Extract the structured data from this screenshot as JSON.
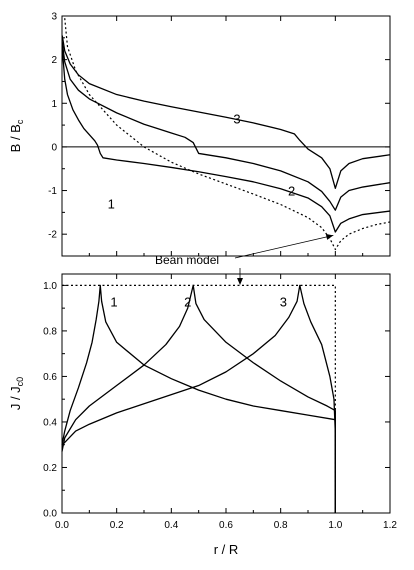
{
  "chart_data": [
    {
      "type": "line",
      "title": "",
      "xlabel": "",
      "ylabel": "B / B",
      "ylabel_sub": "c",
      "xlim": [
        0,
        1.2
      ],
      "ylim": [
        -2.5,
        3
      ],
      "yticks": [
        -2,
        -1,
        0,
        1,
        2,
        3
      ],
      "yticklabels": [
        "-2",
        "-1",
        "0",
        "1",
        "2",
        "3"
      ],
      "zero_line": true,
      "annotation": {
        "text": "Bean model",
        "arrow_target": [
          1.0,
          -2.05
        ]
      },
      "series": [
        {
          "label": "1",
          "label_at": [
            0.18,
            -1.3
          ],
          "style": "solid",
          "points": [
            [
              0.001,
              2.25
            ],
            [
              0.01,
              1.55
            ],
            [
              0.02,
              1.2
            ],
            [
              0.04,
              0.85
            ],
            [
              0.06,
              0.62
            ],
            [
              0.08,
              0.42
            ],
            [
              0.1,
              0.28
            ],
            [
              0.12,
              0.14
            ],
            [
              0.13,
              0.04
            ],
            [
              0.14,
              -0.15
            ],
            [
              0.15,
              -0.25
            ],
            [
              0.2,
              -0.3
            ],
            [
              0.3,
              -0.38
            ],
            [
              0.4,
              -0.47
            ],
            [
              0.5,
              -0.57
            ],
            [
              0.6,
              -0.68
            ],
            [
              0.7,
              -0.8
            ],
            [
              0.8,
              -0.96
            ],
            [
              0.9,
              -1.17
            ],
            [
              0.95,
              -1.37
            ],
            [
              0.98,
              -1.58
            ],
            [
              1.0,
              -1.95
            ],
            [
              1.02,
              -1.75
            ],
            [
              1.05,
              -1.65
            ],
            [
              1.1,
              -1.55
            ],
            [
              1.2,
              -1.47
            ]
          ]
        },
        {
          "label": "2",
          "label_at": [
            0.84,
            -1.0
          ],
          "style": "solid",
          "points": [
            [
              0.001,
              2.4
            ],
            [
              0.01,
              1.95
            ],
            [
              0.03,
              1.55
            ],
            [
              0.06,
              1.3
            ],
            [
              0.1,
              1.1
            ],
            [
              0.2,
              0.78
            ],
            [
              0.3,
              0.52
            ],
            [
              0.4,
              0.32
            ],
            [
              0.45,
              0.22
            ],
            [
              0.48,
              0.1
            ],
            [
              0.5,
              -0.15
            ],
            [
              0.6,
              -0.25
            ],
            [
              0.7,
              -0.38
            ],
            [
              0.8,
              -0.55
            ],
            [
              0.9,
              -0.8
            ],
            [
              0.95,
              -1.02
            ],
            [
              0.98,
              -1.25
            ],
            [
              1.0,
              -1.45
            ],
            [
              1.02,
              -1.15
            ],
            [
              1.05,
              -1.0
            ],
            [
              1.1,
              -0.92
            ],
            [
              1.2,
              -0.82
            ]
          ]
        },
        {
          "label": "3",
          "label_at": [
            0.64,
            0.65
          ],
          "style": "solid",
          "points": [
            [
              0.001,
              2.55
            ],
            [
              0.01,
              2.2
            ],
            [
              0.03,
              1.9
            ],
            [
              0.06,
              1.65
            ],
            [
              0.1,
              1.45
            ],
            [
              0.2,
              1.2
            ],
            [
              0.3,
              1.05
            ],
            [
              0.4,
              0.92
            ],
            [
              0.5,
              0.8
            ],
            [
              0.6,
              0.68
            ],
            [
              0.7,
              0.55
            ],
            [
              0.8,
              0.4
            ],
            [
              0.85,
              0.3
            ],
            [
              0.87,
              0.15
            ],
            [
              0.9,
              -0.05
            ],
            [
              0.95,
              -0.25
            ],
            [
              0.98,
              -0.5
            ],
            [
              1.0,
              -0.95
            ],
            [
              1.02,
              -0.55
            ],
            [
              1.05,
              -0.38
            ],
            [
              1.1,
              -0.27
            ],
            [
              1.2,
              -0.18
            ]
          ]
        },
        {
          "label": "Bean model",
          "style": "dotted",
          "points": [
            [
              0.01,
              2.95
            ],
            [
              0.02,
              2.3
            ],
            [
              0.05,
              1.75
            ],
            [
              0.1,
              1.2
            ],
            [
              0.2,
              0.5
            ],
            [
              0.3,
              0.0
            ],
            [
              0.4,
              -0.35
            ],
            [
              0.5,
              -0.62
            ],
            [
              0.6,
              -0.85
            ],
            [
              0.7,
              -1.08
            ],
            [
              0.8,
              -1.32
            ],
            [
              0.9,
              -1.62
            ],
            [
              0.95,
              -1.85
            ],
            [
              0.98,
              -2.1
            ],
            [
              1.0,
              -2.35
            ],
            [
              1.02,
              -2.15
            ],
            [
              1.05,
              -2.0
            ],
            [
              1.1,
              -1.87
            ],
            [
              1.15,
              -1.78
            ],
            [
              1.2,
              -1.72
            ]
          ]
        }
      ]
    },
    {
      "type": "line",
      "title": "",
      "xlabel": "r / R",
      "ylabel": "J / J",
      "ylabel_sub": "c0",
      "xlim": [
        0,
        1.2
      ],
      "ylim": [
        0,
        1.05
      ],
      "xticks": [
        0,
        0.2,
        0.4,
        0.6,
        0.8,
        1.0,
        1.2
      ],
      "xticklabels": [
        "0.0",
        "0.2",
        "0.4",
        "0.6",
        "0.8",
        "1.0",
        "1.2"
      ],
      "yticks": [
        0,
        0.2,
        0.4,
        0.6,
        0.8,
        1.0
      ],
      "yticklabels": [
        "0.0",
        "0.2",
        "0.4",
        "0.6",
        "0.8",
        "1.0"
      ],
      "series": [
        {
          "label": "1",
          "label_at": [
            0.19,
            0.93
          ],
          "style": "solid",
          "points": [
            [
              0.0,
              0.3
            ],
            [
              0.01,
              0.36
            ],
            [
              0.03,
              0.45
            ],
            [
              0.06,
              0.55
            ],
            [
              0.09,
              0.66
            ],
            [
              0.11,
              0.75
            ],
            [
              0.125,
              0.85
            ],
            [
              0.135,
              0.93
            ],
            [
              0.14,
              1.0
            ],
            [
              0.145,
              0.93
            ],
            [
              0.16,
              0.84
            ],
            [
              0.2,
              0.75
            ],
            [
              0.3,
              0.65
            ],
            [
              0.4,
              0.59
            ],
            [
              0.5,
              0.54
            ],
            [
              0.6,
              0.5
            ],
            [
              0.7,
              0.47
            ],
            [
              0.8,
              0.45
            ],
            [
              0.9,
              0.43
            ],
            [
              1.0,
              0.41
            ],
            [
              1.0,
              0.0
            ]
          ]
        },
        {
          "label": "2",
          "label_at": [
            0.46,
            0.93
          ],
          "style": "solid",
          "points": [
            [
              0.0,
              0.27
            ],
            [
              0.01,
              0.33
            ],
            [
              0.05,
              0.41
            ],
            [
              0.1,
              0.47
            ],
            [
              0.2,
              0.56
            ],
            [
              0.3,
              0.65
            ],
            [
              0.38,
              0.74
            ],
            [
              0.43,
              0.82
            ],
            [
              0.46,
              0.9
            ],
            [
              0.48,
              1.0
            ],
            [
              0.49,
              0.92
            ],
            [
              0.52,
              0.85
            ],
            [
              0.6,
              0.75
            ],
            [
              0.7,
              0.66
            ],
            [
              0.8,
              0.58
            ],
            [
              0.9,
              0.51
            ],
            [
              0.97,
              0.47
            ],
            [
              1.0,
              0.45
            ],
            [
              1.0,
              0.0
            ]
          ]
        },
        {
          "label": "3",
          "label_at": [
            0.81,
            0.93
          ],
          "style": "solid",
          "points": [
            [
              0.0,
              0.3
            ],
            [
              0.01,
              0.31
            ],
            [
              0.05,
              0.36
            ],
            [
              0.1,
              0.39
            ],
            [
              0.2,
              0.44
            ],
            [
              0.3,
              0.48
            ],
            [
              0.4,
              0.52
            ],
            [
              0.5,
              0.56
            ],
            [
              0.6,
              0.62
            ],
            [
              0.7,
              0.7
            ],
            [
              0.78,
              0.78
            ],
            [
              0.83,
              0.86
            ],
            [
              0.86,
              0.93
            ],
            [
              0.87,
              1.0
            ],
            [
              0.885,
              0.92
            ],
            [
              0.91,
              0.84
            ],
            [
              0.95,
              0.74
            ],
            [
              0.98,
              0.6
            ],
            [
              0.995,
              0.5
            ],
            [
              1.0,
              0.35
            ],
            [
              1.0,
              0.0
            ]
          ]
        },
        {
          "label": "Bean model",
          "style": "dotted",
          "points": [
            [
              0.0,
              1.0
            ],
            [
              1.0,
              1.0
            ],
            [
              1.0,
              0.0
            ]
          ]
        }
      ]
    }
  ]
}
